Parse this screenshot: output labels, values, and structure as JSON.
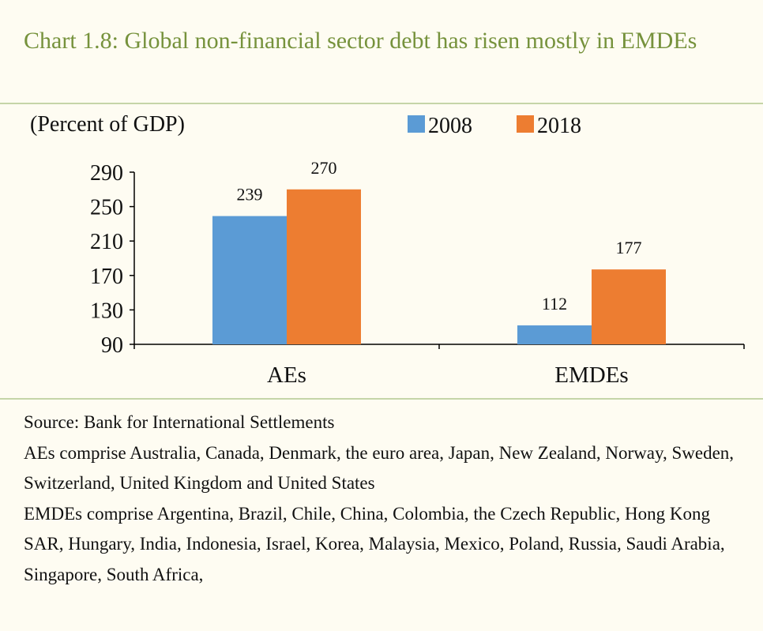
{
  "title": "Chart 1.8: Global non-financial sector debt has risen mostly in EMDEs",
  "chart_data": {
    "type": "bar",
    "ylabel": "(Percent of GDP)",
    "categories": [
      "AEs",
      "EMDEs"
    ],
    "series": [
      {
        "name": "2008",
        "color": "#5b9bd5",
        "values": [
          239,
          112
        ]
      },
      {
        "name": "2018",
        "color": "#ed7d31",
        "values": [
          270,
          177
        ]
      }
    ],
    "ylim": [
      90,
      290
    ],
    "yticks": [
      90,
      130,
      170,
      210,
      250,
      290
    ],
    "data_labels": true,
    "legend": "top-right",
    "grid": false
  },
  "notes": {
    "source": "Source: Bank for International Settlements",
    "aes": "AEs comprise Australia, Canada, Denmark, the euro area, Japan, New Zealand, Norway, Sweden, Switzerland, United Kingdom and United States",
    "emdes": "EMDEs comprise Argentina, Brazil, Chile, China, Colombia, the Czech Republic, Hong Kong SAR, Hungary, India, Indonesia, Israel, Korea, Malaysia, Mexico, Poland, Russia, Saudi Arabia, Singapore, South Africa,"
  }
}
